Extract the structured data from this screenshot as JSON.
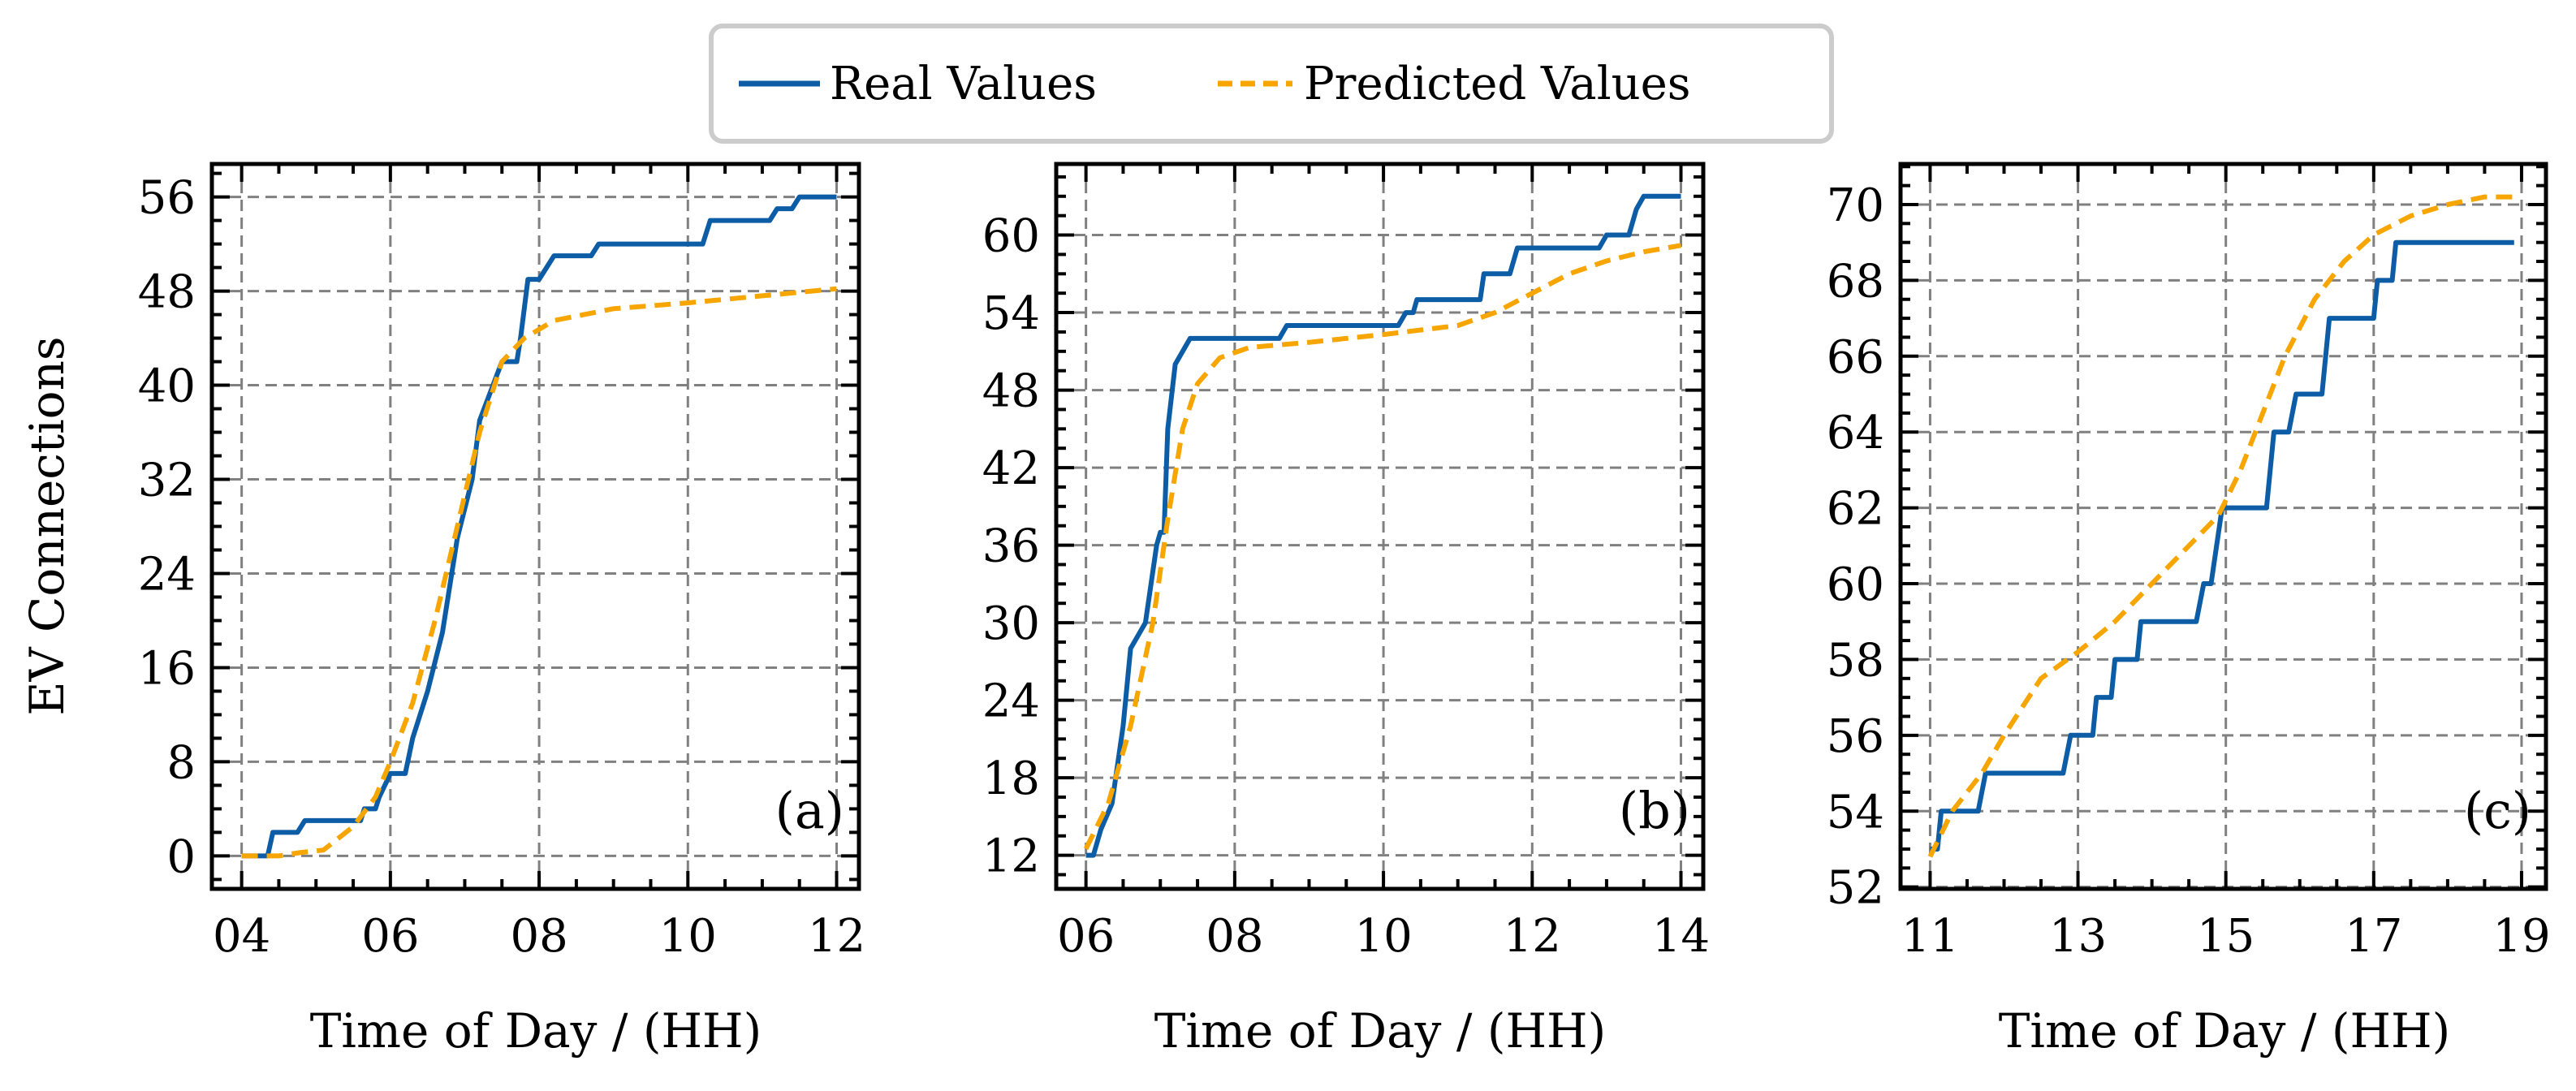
{
  "legend": {
    "real_label": "Real Values",
    "predicted_label": "Predicted Values",
    "placement": "top-center"
  },
  "colors": {
    "real": "#0C5DA5",
    "predicted": "#F7A500",
    "grid": "#808080"
  },
  "chart_data": [
    {
      "type": "line",
      "panel_label": "(a)",
      "xlabel": "Time of Day / (HH)",
      "ylabel": "EV Connections",
      "xlim": [
        3.6,
        12.3
      ],
      "ylim": [
        -2.8,
        58.8
      ],
      "x_ticks": [
        4,
        6,
        8,
        10,
        12
      ],
      "x_tick_labels": [
        "04",
        "06",
        "08",
        "10",
        "12"
      ],
      "x_minor_step": 0.5,
      "y_ticks": [
        0,
        8,
        16,
        24,
        32,
        40,
        48,
        56
      ],
      "y_tick_labels": [
        "0",
        "8",
        "16",
        "24",
        "32",
        "40",
        "48",
        "56"
      ],
      "y_minor_step": 2,
      "grid": true,
      "series": [
        {
          "name": "Real Values",
          "style": "solid",
          "x": [
            4.0,
            4.35,
            4.42,
            4.75,
            4.85,
            5.6,
            5.65,
            5.8,
            5.85,
            6.0,
            6.2,
            6.3,
            6.5,
            6.7,
            6.9,
            7.1,
            7.2,
            7.5,
            7.7,
            7.75,
            7.85,
            8.0,
            8.2,
            8.7,
            8.8,
            10.2,
            10.3,
            11.1,
            11.2,
            11.4,
            11.5,
            12.0
          ],
          "y": [
            0,
            0,
            2,
            2,
            3,
            3,
            4,
            4,
            5,
            7,
            7,
            10,
            14,
            19,
            27,
            32,
            37,
            42,
            42,
            44,
            49,
            49,
            51,
            51,
            52,
            52,
            54,
            54,
            55,
            55,
            56,
            56
          ]
        },
        {
          "name": "Predicted Values",
          "style": "dashed",
          "x": [
            4.0,
            4.5,
            4.8,
            5.1,
            5.5,
            5.8,
            6.0,
            6.3,
            6.6,
            6.9,
            7.2,
            7.5,
            7.8,
            8.2,
            8.6,
            9.0,
            10.0,
            11.0,
            12.0
          ],
          "y": [
            0,
            0,
            0.3,
            0.5,
            2.5,
            5,
            8,
            13,
            20,
            28,
            36,
            42,
            44,
            45.5,
            46,
            46.5,
            47,
            47.6,
            48.2
          ]
        }
      ]
    },
    {
      "type": "line",
      "panel_label": "(b)",
      "xlabel": "Time of Day / (HH)",
      "ylabel": "",
      "xlim": [
        5.6,
        14.3
      ],
      "ylim": [
        9.4,
        65.5
      ],
      "x_ticks": [
        6,
        8,
        10,
        12,
        14
      ],
      "x_tick_labels": [
        "06",
        "08",
        "10",
        "12",
        "14"
      ],
      "x_minor_step": 0.5,
      "y_ticks": [
        12,
        18,
        24,
        30,
        36,
        42,
        48,
        54,
        60
      ],
      "y_tick_labels": [
        "12",
        "18",
        "24",
        "30",
        "36",
        "42",
        "48",
        "54",
        "60"
      ],
      "y_minor_step": 1.5,
      "grid": true,
      "series": [
        {
          "name": "Real Values",
          "style": "solid",
          "x": [
            6.0,
            6.1,
            6.2,
            6.35,
            6.5,
            6.55,
            6.6,
            6.8,
            6.95,
            7.0,
            7.05,
            7.1,
            7.2,
            7.4,
            8.6,
            8.7,
            10.2,
            10.3,
            10.4,
            10.45,
            11.3,
            11.35,
            11.7,
            11.8,
            12.9,
            13.0,
            13.3,
            13.4,
            13.5,
            14.0
          ],
          "y": [
            12,
            12,
            14,
            16,
            22,
            25,
            28,
            30,
            36,
            37,
            37,
            45,
            50,
            52,
            52,
            53,
            53,
            54,
            54,
            55,
            55,
            57,
            57,
            59,
            59,
            60,
            60,
            62,
            63,
            63
          ]
        },
        {
          "name": "Predicted Values",
          "style": "dashed",
          "x": [
            6.0,
            6.3,
            6.6,
            6.9,
            7.1,
            7.3,
            7.5,
            7.8,
            8.2,
            9.0,
            10.0,
            11.0,
            11.5,
            12.0,
            12.5,
            13.0,
            13.5,
            14.0
          ],
          "y": [
            12.5,
            16,
            22,
            30,
            38,
            45,
            48.5,
            50.5,
            51.3,
            51.7,
            52.3,
            53,
            54,
            55.5,
            57,
            58,
            58.7,
            59.2
          ]
        }
      ]
    },
    {
      "type": "line",
      "panel_label": "(c)",
      "xlabel": "Time of Day / (HH)",
      "ylabel": "",
      "xlim": [
        10.6,
        19.33
      ],
      "ylim": [
        51.95,
        71.07
      ],
      "x_ticks": [
        11,
        13,
        15,
        17,
        19
      ],
      "x_tick_labels": [
        "11",
        "13",
        "15",
        "17",
        "19"
      ],
      "x_minor_step": 0.5,
      "y_ticks": [
        52,
        54,
        56,
        58,
        60,
        62,
        64,
        66,
        68,
        70
      ],
      "y_tick_labels": [
        "52",
        "54",
        "56",
        "58",
        "60",
        "62",
        "64",
        "66",
        "68",
        "70"
      ],
      "y_minor_step": 0.5,
      "grid": true,
      "series": [
        {
          "name": "Real Values",
          "style": "solid",
          "x": [
            11.0,
            11.1,
            11.15,
            11.65,
            11.75,
            12.8,
            12.9,
            13.2,
            13.25,
            13.45,
            13.5,
            13.8,
            13.85,
            14.6,
            14.7,
            14.8,
            14.95,
            15.55,
            15.65,
            15.85,
            15.95,
            16.3,
            16.4,
            17.0,
            17.05,
            17.25,
            17.3,
            18.9
          ],
          "y": [
            53,
            53,
            54,
            54,
            55,
            55,
            56,
            56,
            57,
            57,
            58,
            58,
            59,
            59,
            60,
            60,
            62,
            62,
            64,
            64,
            65,
            65,
            67,
            67,
            68,
            68,
            69,
            69
          ]
        },
        {
          "name": "Predicted Values",
          "style": "dashed",
          "x": [
            11.0,
            11.3,
            11.7,
            12.0,
            12.5,
            13.0,
            13.5,
            14.0,
            14.5,
            14.9,
            15.2,
            15.5,
            15.8,
            16.2,
            16.6,
            17.0,
            17.5,
            18.0,
            18.5,
            18.9
          ],
          "y": [
            52.8,
            54,
            55,
            56,
            57.5,
            58.2,
            59,
            60,
            61,
            61.8,
            63,
            64.5,
            66,
            67.5,
            68.5,
            69.2,
            69.7,
            70,
            70.2,
            70.2
          ]
        }
      ]
    }
  ]
}
